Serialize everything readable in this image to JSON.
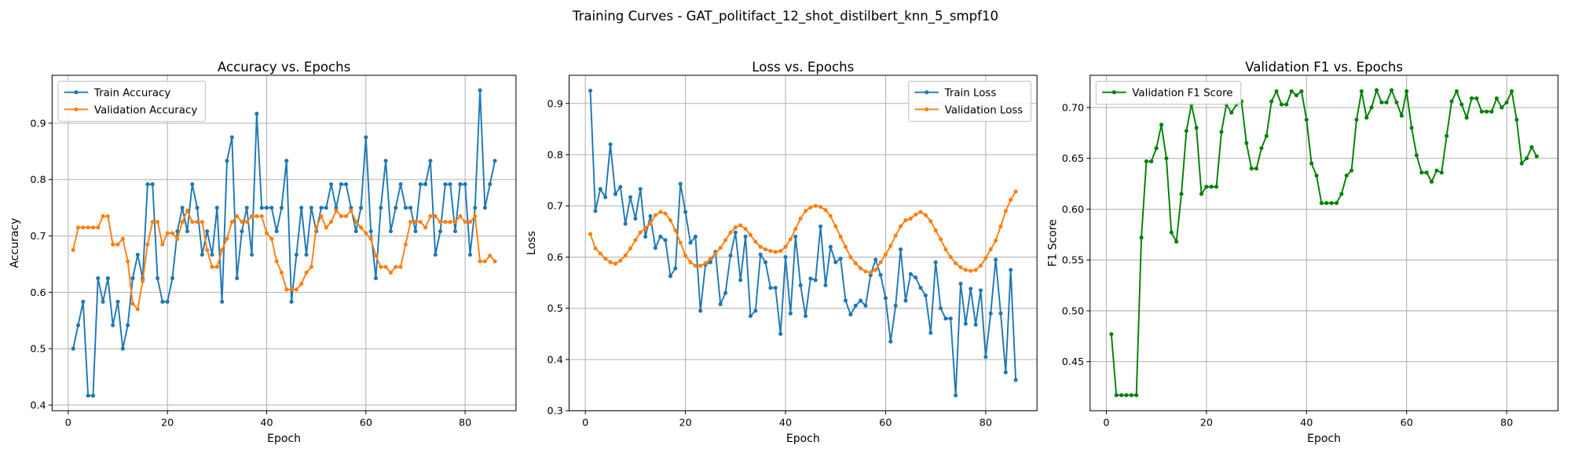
{
  "title": "Training Curves - GAT_politifact_12_shot_distilbert_knn_5_smpf10",
  "chart_data": [
    {
      "type": "line",
      "title": "Accuracy vs. Epochs",
      "xlabel": "Epoch",
      "ylabel": "Accuracy",
      "grid": true,
      "legend": "upper left",
      "x": [
        1,
        2,
        3,
        4,
        5,
        6,
        7,
        8,
        9,
        10,
        11,
        12,
        13,
        14,
        15,
        16,
        17,
        18,
        19,
        20,
        21,
        22,
        23,
        24,
        25,
        26,
        27,
        28,
        29,
        30,
        31,
        32,
        33,
        34,
        35,
        36,
        37,
        38,
        39,
        40,
        41,
        42,
        43,
        44,
        45,
        46,
        47,
        48,
        49,
        50,
        51,
        52,
        53,
        54,
        55,
        56,
        57,
        58,
        59,
        60,
        61,
        62,
        63,
        64,
        65,
        66,
        67,
        68,
        69,
        70,
        71,
        72,
        73,
        74,
        75,
        76,
        77,
        78,
        79,
        80,
        81,
        82,
        83,
        84,
        85,
        86
      ],
      "xlim": [
        -3.25,
        90.25
      ],
      "xticks": [
        0,
        20,
        40,
        60,
        80
      ],
      "ylim": [
        0.39,
        0.985
      ],
      "yticks": [
        0.4,
        0.5,
        0.6,
        0.7,
        0.8,
        0.9
      ],
      "series": [
        {
          "name": "Train Accuracy",
          "color": "#1f77b4",
          "values": [
            0.5,
            0.5417,
            0.5833,
            0.4167,
            0.4167,
            0.625,
            0.5833,
            0.625,
            0.5417,
            0.5833,
            0.5,
            0.5417,
            0.625,
            0.6667,
            0.625,
            0.7917,
            0.7917,
            0.625,
            0.5833,
            0.5833,
            0.625,
            0.7083,
            0.75,
            0.7083,
            0.7917,
            0.75,
            0.6667,
            0.7083,
            0.6667,
            0.75,
            0.5833,
            0.8333,
            0.875,
            0.625,
            0.7083,
            0.75,
            0.6667,
            0.9167,
            0.75,
            0.75,
            0.75,
            0.7083,
            0.75,
            0.8333,
            0.5833,
            0.6667,
            0.75,
            0.6667,
            0.75,
            0.7083,
            0.75,
            0.75,
            0.7917,
            0.75,
            0.7917,
            0.7917,
            0.75,
            0.7083,
            0.75,
            0.875,
            0.7083,
            0.625,
            0.75,
            0.8333,
            0.7083,
            0.75,
            0.7917,
            0.75,
            0.75,
            0.7083,
            0.7917,
            0.7917,
            0.8333,
            0.6667,
            0.7083,
            0.7917,
            0.7917,
            0.7083,
            0.7917,
            0.7917,
            0.6667,
            0.75,
            0.9583,
            0.75,
            0.7917,
            0.8333
          ]
        },
        {
          "name": "Validation Accuracy",
          "color": "#ff7f0e",
          "values": [
            0.675,
            0.715,
            0.715,
            0.715,
            0.715,
            0.715,
            0.735,
            0.735,
            0.685,
            0.685,
            0.695,
            0.655,
            0.58,
            0.57,
            0.62,
            0.685,
            0.725,
            0.725,
            0.685,
            0.705,
            0.705,
            0.695,
            0.725,
            0.745,
            0.725,
            0.725,
            0.725,
            0.675,
            0.645,
            0.645,
            0.675,
            0.695,
            0.725,
            0.735,
            0.725,
            0.725,
            0.735,
            0.735,
            0.735,
            0.705,
            0.695,
            0.655,
            0.635,
            0.605,
            0.605,
            0.605,
            0.615,
            0.635,
            0.645,
            0.715,
            0.735,
            0.715,
            0.725,
            0.745,
            0.735,
            0.735,
            0.745,
            0.725,
            0.715,
            0.705,
            0.695,
            0.665,
            0.645,
            0.645,
            0.635,
            0.645,
            0.645,
            0.685,
            0.725,
            0.725,
            0.725,
            0.715,
            0.735,
            0.735,
            0.725,
            0.725,
            0.725,
            0.725,
            0.735,
            0.725,
            0.725,
            0.735,
            0.655,
            0.655,
            0.665,
            0.655
          ]
        }
      ]
    },
    {
      "type": "line",
      "title": "Loss vs. Epochs",
      "xlabel": "Epoch",
      "ylabel": "Loss",
      "grid": true,
      "legend": "upper right",
      "x": [
        1,
        2,
        3,
        4,
        5,
        6,
        7,
        8,
        9,
        10,
        11,
        12,
        13,
        14,
        15,
        16,
        17,
        18,
        19,
        20,
        21,
        22,
        23,
        24,
        25,
        26,
        27,
        28,
        29,
        30,
        31,
        32,
        33,
        34,
        35,
        36,
        37,
        38,
        39,
        40,
        41,
        42,
        43,
        44,
        45,
        46,
        47,
        48,
        49,
        50,
        51,
        52,
        53,
        54,
        55,
        56,
        57,
        58,
        59,
        60,
        61,
        62,
        63,
        64,
        65,
        66,
        67,
        68,
        69,
        70,
        71,
        72,
        73,
        74,
        75,
        76,
        77,
        78,
        79,
        80,
        81,
        82,
        83,
        84,
        85,
        86
      ],
      "xlim": [
        -3.25,
        90.25
      ],
      "xticks": [
        0,
        20,
        40,
        60,
        80
      ],
      "ylim": [
        0.3,
        0.955
      ],
      "yticks": [
        0.3,
        0.4,
        0.5,
        0.6,
        0.7,
        0.8,
        0.9
      ],
      "series": [
        {
          "name": "Train Loss",
          "color": "#1f77b4",
          "values": [
            0.925,
            0.69,
            0.733,
            0.717,
            0.82,
            0.723,
            0.737,
            0.665,
            0.717,
            0.675,
            0.733,
            0.64,
            0.68,
            0.618,
            0.64,
            0.633,
            0.563,
            0.578,
            0.743,
            0.688,
            0.628,
            0.64,
            0.495,
            0.585,
            0.59,
            0.61,
            0.508,
            0.53,
            0.603,
            0.648,
            0.555,
            0.64,
            0.485,
            0.495,
            0.605,
            0.59,
            0.54,
            0.54,
            0.45,
            0.6,
            0.49,
            0.64,
            0.545,
            0.485,
            0.558,
            0.555,
            0.66,
            0.545,
            0.62,
            0.59,
            0.597,
            0.515,
            0.488,
            0.505,
            0.515,
            0.505,
            0.565,
            0.595,
            0.565,
            0.52,
            0.435,
            0.505,
            0.615,
            0.515,
            0.567,
            0.56,
            0.54,
            0.525,
            0.452,
            0.59,
            0.5,
            0.48,
            0.48,
            0.33,
            0.548,
            0.47,
            0.538,
            0.468,
            0.535,
            0.405,
            0.49,
            0.595,
            0.49,
            0.375,
            0.575,
            0.36
          ]
        },
        {
          "name": "Validation Loss",
          "color": "#ff7f0e",
          "values": [
            0.645,
            0.617,
            0.607,
            0.597,
            0.59,
            0.587,
            0.593,
            0.603,
            0.617,
            0.633,
            0.648,
            0.657,
            0.665,
            0.682,
            0.688,
            0.685,
            0.672,
            0.652,
            0.628,
            0.603,
            0.59,
            0.583,
            0.583,
            0.588,
            0.597,
            0.607,
            0.618,
            0.633,
            0.648,
            0.658,
            0.662,
            0.655,
            0.643,
            0.63,
            0.62,
            0.615,
            0.612,
            0.61,
            0.612,
            0.62,
            0.635,
            0.655,
            0.675,
            0.69,
            0.697,
            0.7,
            0.698,
            0.692,
            0.68,
            0.66,
            0.64,
            0.62,
            0.6,
            0.588,
            0.578,
            0.572,
            0.57,
            0.575,
            0.59,
            0.605,
            0.622,
            0.642,
            0.66,
            0.672,
            0.675,
            0.683,
            0.688,
            0.682,
            0.67,
            0.652,
            0.635,
            0.615,
            0.6,
            0.588,
            0.58,
            0.575,
            0.573,
            0.575,
            0.583,
            0.598,
            0.615,
            0.632,
            0.66,
            0.69,
            0.712,
            0.728
          ]
        }
      ]
    },
    {
      "type": "line",
      "title": "Validation F1 vs. Epochs",
      "xlabel": "Epoch",
      "ylabel": "F1 Score",
      "grid": true,
      "legend": "upper left",
      "x": [
        1,
        2,
        3,
        4,
        5,
        6,
        7,
        8,
        9,
        10,
        11,
        12,
        13,
        14,
        15,
        16,
        17,
        18,
        19,
        20,
        21,
        22,
        23,
        24,
        25,
        26,
        27,
        28,
        29,
        30,
        31,
        32,
        33,
        34,
        35,
        36,
        37,
        38,
        39,
        40,
        41,
        42,
        43,
        44,
        45,
        46,
        47,
        48,
        49,
        50,
        51,
        52,
        53,
        54,
        55,
        56,
        57,
        58,
        59,
        60,
        61,
        62,
        63,
        64,
        65,
        66,
        67,
        68,
        69,
        70,
        71,
        72,
        73,
        74,
        75,
        76,
        77,
        78,
        79,
        80,
        81,
        82,
        83,
        84,
        85,
        86
      ],
      "xlim": [
        -3.25,
        90.25
      ],
      "xticks": [
        0,
        20,
        40,
        60,
        80
      ],
      "ylim": [
        0.4017,
        0.7317
      ],
      "yticks": [
        0.45,
        {
          "value": 0.5,
          "label": "0.50"
        },
        0.55,
        {
          "value": 0.6,
          "label": "0.60"
        },
        0.65,
        {
          "value": 0.7,
          "label": "0.70"
        }
      ],
      "series": [
        {
          "name": "Validation F1 Score",
          "color": "#008000",
          "values": [
            0.477,
            0.417,
            0.417,
            0.417,
            0.417,
            0.417,
            0.572,
            0.647,
            0.647,
            0.66,
            0.683,
            0.65,
            0.577,
            0.568,
            0.615,
            0.677,
            0.703,
            0.68,
            0.615,
            0.622,
            0.622,
            0.622,
            0.676,
            0.703,
            0.695,
            0.703,
            0.706,
            0.665,
            0.64,
            0.64,
            0.66,
            0.672,
            0.706,
            0.716,
            0.703,
            0.703,
            0.716,
            0.712,
            0.716,
            0.688,
            0.645,
            0.633,
            0.606,
            0.606,
            0.606,
            0.606,
            0.615,
            0.633,
            0.638,
            0.688,
            0.716,
            0.69,
            0.7,
            0.717,
            0.705,
            0.705,
            0.717,
            0.705,
            0.692,
            0.716,
            0.68,
            0.653,
            0.636,
            0.636,
            0.627,
            0.638,
            0.636,
            0.672,
            0.706,
            0.716,
            0.703,
            0.69,
            0.709,
            0.709,
            0.696,
            0.696,
            0.696,
            0.709,
            0.7,
            0.705,
            0.716,
            0.688,
            0.645,
            0.65,
            0.661,
            0.652
          ]
        }
      ]
    }
  ]
}
